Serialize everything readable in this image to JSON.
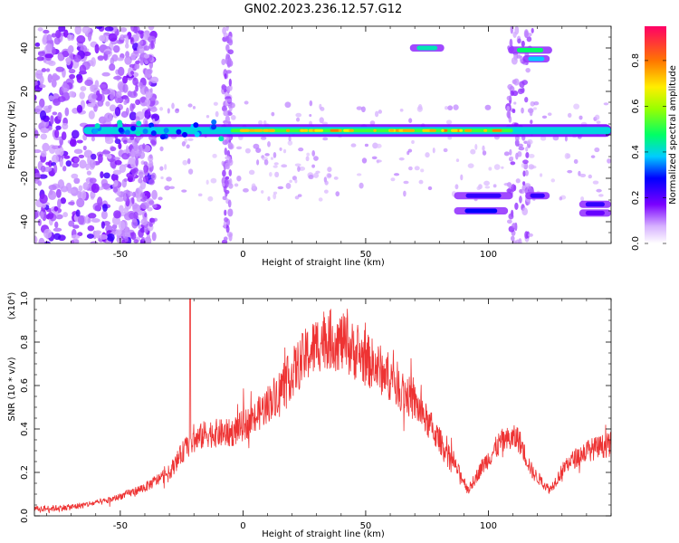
{
  "title": "GN02.2023.236.12.57.G12",
  "chart_data": [
    {
      "type": "heatmap",
      "xlabel": "Height of straight line (km)",
      "ylabel": "Frequency (Hz)",
      "xlim": [
        -85,
        150
      ],
      "ylim": [
        -50,
        50
      ],
      "xticks": [
        -50,
        0,
        50,
        100
      ],
      "yticks": [
        -40,
        -20,
        0,
        20,
        40
      ],
      "colorbar": {
        "label": "Normalized spectral amplitude",
        "ticks": [
          "0.0",
          "0.2",
          "0.4",
          "0.6",
          "0.8"
        ],
        "range": [
          0,
          0.95
        ],
        "colormap": "rainbow"
      },
      "features": [
        {
          "kind": "line",
          "x0": -65,
          "x1": 150,
          "y": 2,
          "amplitude": 0.85
        },
        {
          "kind": "blob",
          "x0": 68,
          "x1": 82,
          "y": 40,
          "amplitude": 0.45
        },
        {
          "kind": "blob",
          "x0": 108,
          "x1": 126,
          "y": 39,
          "amplitude": 0.5
        },
        {
          "kind": "blob",
          "x0": 114,
          "x1": 125,
          "y": 35,
          "amplitude": 0.4
        },
        {
          "kind": "blob",
          "x0": 86,
          "x1": 110,
          "y": -28,
          "amplitude": 0.25
        },
        {
          "kind": "blob",
          "x0": 86,
          "x1": 108,
          "y": -35,
          "amplitude": 0.3
        },
        {
          "kind": "blob",
          "x0": 115,
          "x1": 125,
          "y": -28,
          "amplitude": 0.25
        },
        {
          "kind": "blob",
          "x0": 137,
          "x1": 150,
          "y": -32,
          "amplitude": 0.25
        },
        {
          "kind": "blob",
          "x0": 137,
          "x1": 150,
          "y": -36,
          "amplitude": 0.2
        }
      ]
    },
    {
      "type": "line",
      "xlabel": "Height of straight line (km)",
      "ylabel": "SNR (10 * v/v)",
      "multiplier": "(x10⁴)",
      "xlim": [
        -85,
        150
      ],
      "ylim": [
        0,
        1.0
      ],
      "xticks": [
        -50,
        0,
        50,
        100
      ],
      "yticks": [
        "0.0",
        "0.2",
        "0.4",
        "0.6",
        "0.8",
        "1.0"
      ],
      "color": "#ee3333",
      "envelope": [
        {
          "x": -85,
          "y": 0.03
        },
        {
          "x": -70,
          "y": 0.04
        },
        {
          "x": -55,
          "y": 0.07
        },
        {
          "x": -40,
          "y": 0.13
        },
        {
          "x": -30,
          "y": 0.2
        },
        {
          "x": -23,
          "y": 0.32
        },
        {
          "x": -15,
          "y": 0.38
        },
        {
          "x": -5,
          "y": 0.38
        },
        {
          "x": 5,
          "y": 0.45
        },
        {
          "x": 15,
          "y": 0.58
        },
        {
          "x": 25,
          "y": 0.73
        },
        {
          "x": 33,
          "y": 0.82
        },
        {
          "x": 40,
          "y": 0.8
        },
        {
          "x": 50,
          "y": 0.72
        },
        {
          "x": 60,
          "y": 0.64
        },
        {
          "x": 70,
          "y": 0.52
        },
        {
          "x": 80,
          "y": 0.35
        },
        {
          "x": 87,
          "y": 0.22
        },
        {
          "x": 92,
          "y": 0.12
        },
        {
          "x": 97,
          "y": 0.22
        },
        {
          "x": 105,
          "y": 0.34
        },
        {
          "x": 112,
          "y": 0.36
        },
        {
          "x": 118,
          "y": 0.2
        },
        {
          "x": 125,
          "y": 0.12
        },
        {
          "x": 132,
          "y": 0.24
        },
        {
          "x": 140,
          "y": 0.3
        },
        {
          "x": 150,
          "y": 0.33
        }
      ],
      "spike": {
        "x": -21.5,
        "y": 1.0
      }
    }
  ]
}
